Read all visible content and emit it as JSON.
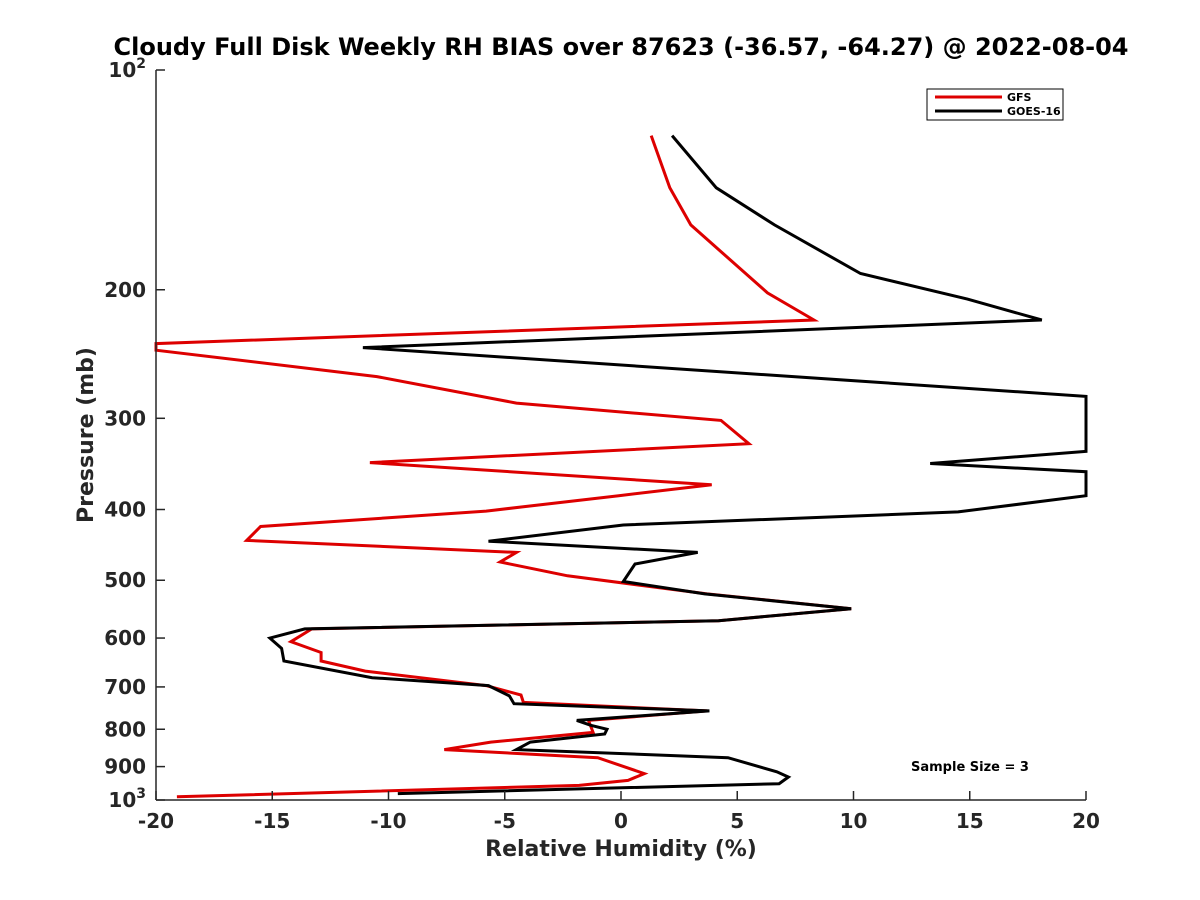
{
  "chart_data": {
    "type": "line",
    "title": "Cloudy Full Disk Weekly RH BIAS over 87623 (-36.57, -64.27) @ 2022-08-04",
    "xlabel": "Relative Humidity (%)",
    "ylabel": "Pressure (mb)",
    "xlim": [
      -20,
      20
    ],
    "ylim": [
      100,
      1000
    ],
    "y_scale": "log",
    "y_reversed": true,
    "x_ticks": [
      "-20",
      "-15",
      "-10",
      "-5",
      "0",
      "5",
      "10",
      "15",
      "20"
    ],
    "y_ticks": [
      {
        "value": 100,
        "base": "10",
        "exp": "2"
      },
      {
        "value": 200,
        "label": "200"
      },
      {
        "value": 300,
        "label": "300"
      },
      {
        "value": 400,
        "label": "400"
      },
      {
        "value": 500,
        "label": "500"
      },
      {
        "value": 600,
        "label": "600"
      },
      {
        "value": 700,
        "label": "700"
      },
      {
        "value": 800,
        "label": "800"
      },
      {
        "value": 900,
        "label": "900"
      },
      {
        "value": 1000,
        "base": "10",
        "exp": "3"
      }
    ],
    "legend_position": "top-right",
    "grid": false,
    "annotation": "Sample Size = 3",
    "series": [
      {
        "name": "GFS",
        "color": "#dd0000",
        "points": [
          [
            1.3,
            123
          ],
          [
            2.1,
            145
          ],
          [
            3.0,
            163
          ],
          [
            6.3,
            202
          ],
          [
            8.3,
            220
          ],
          [
            -20,
            237
          ],
          [
            -20,
            242
          ],
          [
            -10.5,
            263
          ],
          [
            -4.5,
            286
          ],
          [
            4.3,
            302
          ],
          [
            5.5,
            325
          ],
          [
            -10.8,
            345
          ],
          [
            3.9,
            370
          ],
          [
            -0.1,
            383
          ],
          [
            -5.8,
            402
          ],
          [
            -15.5,
            422
          ],
          [
            -16.1,
            441
          ],
          [
            -4.5,
            458
          ],
          [
            -5.2,
            472
          ],
          [
            -2.3,
            493
          ],
          [
            3.7,
            522
          ],
          [
            9.9,
            547
          ],
          [
            4.2,
            568
          ],
          [
            -13.3,
            583
          ],
          [
            -14.2,
            607
          ],
          [
            -12.9,
            628
          ],
          [
            -12.9,
            645
          ],
          [
            -11.0,
            666
          ],
          [
            -5.8,
            697
          ],
          [
            -4.3,
            718
          ],
          [
            -4.2,
            735
          ],
          [
            3.7,
            755
          ],
          [
            -1.4,
            778
          ],
          [
            -1.2,
            808
          ],
          [
            -5.6,
            833
          ],
          [
            -7.6,
            853
          ],
          [
            -1.0,
            875
          ],
          [
            1.0,
            920
          ],
          [
            0.3,
            940
          ],
          [
            -1.8,
            955
          ],
          [
            -19.1,
            990
          ]
        ]
      },
      {
        "name": "GOES-16",
        "color": "#000000",
        "points": [
          [
            2.2,
            123
          ],
          [
            4.1,
            145
          ],
          [
            6.6,
            163
          ],
          [
            10.3,
            190
          ],
          [
            14.9,
            206
          ],
          [
            18.1,
            220
          ],
          [
            -11.1,
            240
          ],
          [
            20,
            280
          ],
          [
            20,
            333
          ],
          [
            13.3,
            346
          ],
          [
            20,
            355
          ],
          [
            20,
            383
          ],
          [
            14.5,
            403
          ],
          [
            0.1,
            420
          ],
          [
            -5.7,
            442
          ],
          [
            3.3,
            458
          ],
          [
            0.6,
            475
          ],
          [
            0.1,
            502
          ],
          [
            3.6,
            522
          ],
          [
            9.9,
            547
          ],
          [
            4.2,
            568
          ],
          [
            -13.6,
            583
          ],
          [
            -15.1,
            600
          ],
          [
            -14.6,
            620
          ],
          [
            -14.5,
            645
          ],
          [
            -10.7,
            680
          ],
          [
            -5.7,
            697
          ],
          [
            -4.8,
            720
          ],
          [
            -4.6,
            738
          ],
          [
            3.8,
            755
          ],
          [
            -1.9,
            778
          ],
          [
            -1.3,
            790
          ],
          [
            -0.6,
            800
          ],
          [
            -0.7,
            812
          ],
          [
            -3.9,
            833
          ],
          [
            -4.5,
            853
          ],
          [
            4.6,
            875
          ],
          [
            6.7,
            915
          ],
          [
            7.2,
            930
          ],
          [
            6.8,
            950
          ],
          [
            -9.6,
            980
          ]
        ]
      }
    ]
  }
}
